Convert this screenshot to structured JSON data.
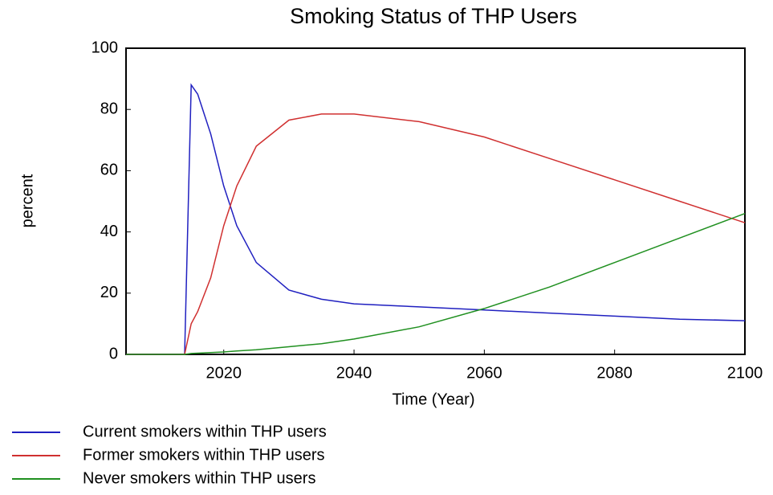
{
  "chart_data": {
    "type": "line",
    "title": "Smoking Status of THP Users",
    "x_label": "Time (Year)",
    "y_label": "percent",
    "x": [
      2005,
      2010,
      2014,
      2015,
      2016,
      2018,
      2020,
      2022,
      2025,
      2030,
      2035,
      2040,
      2050,
      2060,
      2070,
      2080,
      2090,
      2100
    ],
    "series": [
      {
        "name": "Current smokers within THP users",
        "color": "#2020c0",
        "values": [
          0,
          0,
          0,
          88,
          85,
          72,
          55,
          42,
          30,
          21,
          18,
          16.5,
          15.5,
          14.5,
          13.5,
          12.5,
          11.5,
          11
        ]
      },
      {
        "name": "Former smokers within THP users",
        "color": "#d03030",
        "values": [
          0,
          0,
          0,
          10,
          14,
          25,
          42,
          55,
          68,
          76.5,
          78.5,
          78.5,
          76,
          71,
          64,
          57,
          50,
          43
        ]
      },
      {
        "name": "Never smokers within THP users",
        "color": "#209020",
        "values": [
          0,
          0,
          0,
          0.3,
          0.4,
          0.6,
          0.8,
          1.1,
          1.5,
          2.5,
          3.5,
          5,
          9,
          15,
          22,
          30,
          38,
          46
        ]
      }
    ],
    "xlim": [
      2005,
      2100
    ],
    "ylim": [
      0,
      100
    ],
    "xticks": [
      2020,
      2040,
      2060,
      2080,
      2100
    ],
    "yticks": [
      0,
      20,
      40,
      60,
      80,
      100
    ],
    "grid": false
  }
}
